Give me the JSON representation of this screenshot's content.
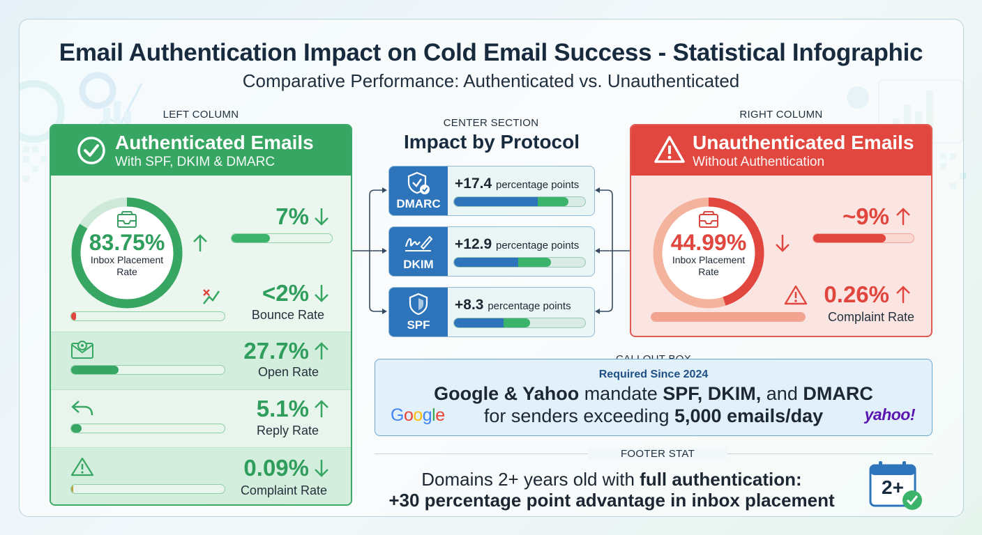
{
  "title": "Email Authentication Impact on Cold Email Success - Statistical Infographic",
  "subtitle": "Comparative Performance: Authenticated vs. Unauthenticated",
  "labels": {
    "left_column": "LEFT COLUMN",
    "center_section": "CENTER SECTION",
    "right_column": "RIGHT COLUMN",
    "callout_box": "CALLOUT BOX",
    "footer_stat": "FOOTER STAT"
  },
  "colors": {
    "green": "#37a662",
    "red": "#e2473f",
    "blue": "#2e74bb"
  },
  "authenticated": {
    "heading": "Authenticated Emails",
    "subheading": "With SPF, DKIM & DMARC",
    "inbox_value": "83.75%",
    "inbox_label_1": "Inbox Placement",
    "inbox_label_2": "Rate",
    "inbox_fraction": 0.8375,
    "top_metric": {
      "value": "7%",
      "trend": "down",
      "fill": 0.38
    },
    "bounce": {
      "value": "<2%",
      "label": "Bounce Rate",
      "trend": "down",
      "fill": 0.03
    },
    "open": {
      "value": "27.7%",
      "label": "Open Rate",
      "trend": "up",
      "fill": 0.31
    },
    "reply": {
      "value": "5.1%",
      "label": "Reply Rate",
      "trend": "up",
      "fill": 0.07
    },
    "complaint": {
      "value": "0.09%",
      "label": "Complaint Rate",
      "trend": "down",
      "fill": 0.015
    }
  },
  "protocols": {
    "heading": "Impact by Protocol",
    "unit": "percentage points",
    "items": [
      {
        "name": "DMARC",
        "value": "+17.4",
        "blue": 0.64,
        "green": 0.23,
        "icon": "shield-check-icon"
      },
      {
        "name": "DKIM",
        "value": "+12.9",
        "blue": 0.49,
        "green": 0.25,
        "icon": "signature-icon"
      },
      {
        "name": "SPF",
        "value": "+8.3",
        "blue": 0.38,
        "green": 0.2,
        "icon": "shield-icon"
      }
    ]
  },
  "unauthenticated": {
    "heading": "Unauthenticated Emails",
    "subheading": "Without Authentication",
    "inbox_value": "44.99%",
    "inbox_label_1": "Inbox Placement",
    "inbox_label_2": "Rate",
    "inbox_fraction": 0.4499,
    "top_metric": {
      "value": "~9%",
      "trend": "up",
      "fill": 0.72
    },
    "complaint": {
      "value": "0.26%",
      "label": "Complaint Rate",
      "trend": "up",
      "fill": 1.0
    }
  },
  "callout": {
    "required": "Required Since 2024",
    "line1_a": "Google & Yahoo",
    "line1_b": " mandate ",
    "line1_c": "SPF, DKIM,",
    "line1_d": " and ",
    "line1_e": "DMARC",
    "line2_a": "for senders exceeding ",
    "line2_b": "5,000 emails/day",
    "google_logo": "Google",
    "yahoo_logo": "yahoo!"
  },
  "footer": {
    "line1_a": "Domains 2+ years old with ",
    "line1_b": "full authentication:",
    "line2": "+30 percentage point advantage in inbox placement",
    "badge": "2+"
  },
  "chart_data": [
    {
      "type": "table",
      "title": "Authenticated Emails",
      "subtitle": "With SPF, DKIM & DMARC",
      "rows": [
        {
          "metric": "Inbox Placement Rate",
          "value": 83.75,
          "unit": "%",
          "trend": "up"
        },
        {
          "metric": "",
          "value": 7,
          "unit": "%",
          "trend": "down"
        },
        {
          "metric": "Bounce Rate",
          "value": "<2",
          "unit": "%",
          "trend": "down"
        },
        {
          "metric": "Open Rate",
          "value": 27.7,
          "unit": "%",
          "trend": "up"
        },
        {
          "metric": "Reply Rate",
          "value": 5.1,
          "unit": "%",
          "trend": "up"
        },
        {
          "metric": "Complaint Rate",
          "value": 0.09,
          "unit": "%",
          "trend": "down"
        }
      ]
    },
    {
      "type": "bar",
      "title": "Impact by Protocol",
      "categories": [
        "DMARC",
        "DKIM",
        "SPF"
      ],
      "values": [
        17.4,
        12.9,
        8.3
      ],
      "ylabel": "percentage points"
    },
    {
      "type": "table",
      "title": "Unauthenticated Emails",
      "subtitle": "Without Authentication",
      "rows": [
        {
          "metric": "Inbox Placement Rate",
          "value": 44.99,
          "unit": "%",
          "trend": "down"
        },
        {
          "metric": "",
          "value": "~9",
          "unit": "%",
          "trend": "up"
        },
        {
          "metric": "Complaint Rate",
          "value": 0.26,
          "unit": "%",
          "trend": "up"
        }
      ]
    }
  ]
}
